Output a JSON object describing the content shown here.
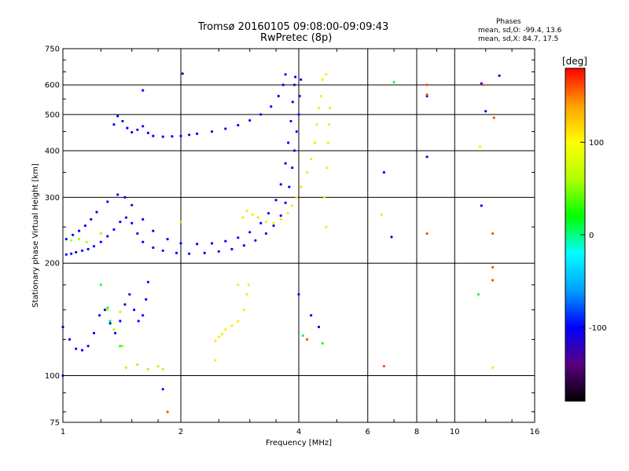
{
  "chart_data": {
    "type": "scatter",
    "title": "Tromsø 20160105 09:08:00-09:09:43",
    "subtitle": "RwPretec (8p)",
    "xlabel": "Frequency [MHz]",
    "ylabel": "Stationary phase Virtual Height [km]",
    "x_scale": "log",
    "y_scale": "log",
    "xlim": [
      1,
      16
    ],
    "ylim": [
      75,
      750
    ],
    "x_ticks": [
      1,
      2,
      4,
      6,
      8,
      10,
      16
    ],
    "x_tick_labels": [
      "1",
      "2",
      "4",
      "6",
      "8",
      "10",
      "16"
    ],
    "y_ticks": [
      75,
      100,
      200,
      300,
      400,
      500,
      600,
      750
    ],
    "y_tick_labels": [
      "75",
      "100",
      "200",
      "300",
      "400",
      "500",
      "600",
      "750"
    ],
    "grid": true,
    "info_lines": [
      "Phases",
      "mean, sd,O:  -99.4, 13.6",
      "mean, sd,X:  84.7, 17.5"
    ],
    "colorbar": {
      "label": "[deg]",
      "range": [
        -180,
        180
      ],
      "ticks": [
        100,
        0,
        -100
      ],
      "tick_labels": [
        "100",
        "0",
        "-100"
      ],
      "colors": [
        "#000000",
        "#5a0080",
        "#0000ff",
        "#00a0ff",
        "#00ffff",
        "#00ff00",
        "#b0ff00",
        "#ffff00",
        "#ffa000",
        "#ff0000"
      ]
    },
    "series": [
      {
        "phase": -100,
        "points": [
          [
            1.02,
            211
          ],
          [
            1.05,
            212
          ],
          [
            1.08,
            214
          ],
          [
            1.12,
            216
          ],
          [
            1.16,
            218
          ],
          [
            1.2,
            222
          ],
          [
            1.25,
            228
          ],
          [
            1.3,
            236
          ],
          [
            1.35,
            246
          ],
          [
            1.4,
            258
          ],
          [
            1.45,
            265
          ],
          [
            1.5,
            256
          ],
          [
            1.55,
            240
          ],
          [
            1.6,
            228
          ],
          [
            1.7,
            220
          ],
          [
            1.8,
            216
          ],
          [
            1.95,
            213
          ],
          [
            2.1,
            212
          ],
          [
            2.3,
            213
          ],
          [
            2.5,
            215
          ],
          [
            2.7,
            218
          ],
          [
            2.9,
            223
          ],
          [
            3.1,
            230
          ],
          [
            3.3,
            240
          ],
          [
            3.45,
            252
          ],
          [
            3.6,
            268
          ],
          [
            3.7,
            290
          ],
          [
            3.78,
            320
          ],
          [
            3.85,
            360
          ],
          [
            3.9,
            400
          ],
          [
            3.95,
            450
          ],
          [
            4.0,
            500
          ],
          [
            4.02,
            560
          ],
          [
            4.05,
            620
          ]
        ]
      },
      {
        "phase": -100,
        "points": [
          [
            1.02,
            232
          ],
          [
            1.06,
            238
          ],
          [
            1.1,
            244
          ],
          [
            1.14,
            252
          ],
          [
            1.18,
            262
          ],
          [
            1.22,
            274
          ],
          [
            1.3,
            292
          ],
          [
            1.38,
            305
          ],
          [
            1.44,
            300
          ],
          [
            1.5,
            286
          ],
          [
            1.6,
            262
          ],
          [
            1.7,
            244
          ],
          [
            1.85,
            232
          ],
          [
            2.0,
            226
          ],
          [
            2.2,
            225
          ],
          [
            2.4,
            226
          ],
          [
            2.6,
            229
          ],
          [
            2.8,
            234
          ],
          [
            3.0,
            242
          ],
          [
            3.2,
            256
          ],
          [
            3.35,
            272
          ],
          [
            3.5,
            295
          ],
          [
            3.6,
            325
          ],
          [
            3.7,
            370
          ],
          [
            3.76,
            420
          ],
          [
            3.82,
            480
          ],
          [
            3.86,
            540
          ],
          [
            3.9,
            600
          ],
          [
            3.92,
            630
          ]
        ]
      },
      {
        "phase": -100,
        "points": [
          [
            1.35,
            470
          ],
          [
            1.38,
            495
          ],
          [
            1.42,
            480
          ],
          [
            1.46,
            460
          ],
          [
            1.5,
            448
          ],
          [
            1.55,
            455
          ],
          [
            1.6,
            465
          ],
          [
            1.65,
            446
          ],
          [
            1.7,
            438
          ],
          [
            1.8,
            436
          ],
          [
            1.9,
            437
          ],
          [
            2.0,
            438
          ],
          [
            2.1,
            441
          ],
          [
            2.2,
            444
          ],
          [
            2.4,
            450
          ],
          [
            2.6,
            458
          ],
          [
            2.8,
            468
          ],
          [
            3.0,
            482
          ],
          [
            3.2,
            500
          ],
          [
            3.4,
            525
          ],
          [
            3.55,
            560
          ],
          [
            3.65,
            600
          ],
          [
            3.7,
            640
          ]
        ]
      },
      {
        "phase": -100,
        "points": [
          [
            1.0,
            135
          ],
          [
            1.04,
            125
          ],
          [
            1.08,
            118
          ],
          [
            1.12,
            117
          ],
          [
            1.16,
            120
          ],
          [
            1.2,
            130
          ],
          [
            1.24,
            145
          ],
          [
            1.28,
            150
          ],
          [
            1.32,
            138
          ],
          [
            1.36,
            130
          ],
          [
            1.4,
            140
          ],
          [
            1.44,
            155
          ],
          [
            1.48,
            165
          ],
          [
            1.52,
            150
          ],
          [
            1.56,
            140
          ],
          [
            1.6,
            145
          ],
          [
            1.63,
            160
          ],
          [
            1.65,
            178
          ]
        ]
      },
      {
        "phase": -100,
        "points": [
          [
            1.0,
            100
          ],
          [
            1.6,
            580
          ],
          [
            1.8,
            92
          ],
          [
            2.02,
            643
          ],
          [
            4.0,
            165
          ],
          [
            4.3,
            145
          ],
          [
            4.5,
            135
          ],
          [
            6.6,
            350
          ],
          [
            6.9,
            235
          ],
          [
            8.5,
            385
          ],
          [
            8.5,
            560
          ],
          [
            11.7,
            605
          ],
          [
            11.7,
            285
          ],
          [
            12.0,
            510
          ],
          [
            13.0,
            635
          ]
        ]
      },
      {
        "phase": 10,
        "points": [
          [
            1.25,
            175
          ],
          [
            1.3,
            152
          ],
          [
            1.32,
            140
          ],
          [
            1.4,
            120
          ],
          [
            4.1,
            128
          ],
          [
            4.6,
            122
          ],
          [
            7.0,
            610
          ],
          [
            11.5,
            165
          ]
        ]
      },
      {
        "phase": 60,
        "points": [
          [
            1.05,
            230
          ],
          [
            1.1,
            232
          ],
          [
            1.15,
            228
          ],
          [
            1.25,
            240
          ],
          [
            1.3,
            150
          ],
          [
            1.35,
            133
          ],
          [
            1.4,
            148
          ],
          [
            1.42,
            120
          ],
          [
            1.45,
            105
          ],
          [
            1.55,
            107
          ],
          [
            1.65,
            104
          ],
          [
            1.75,
            106
          ],
          [
            1.8,
            104
          ],
          [
            2.0,
            258
          ]
        ]
      },
      {
        "phase": 110,
        "points": [
          [
            2.45,
            124
          ],
          [
            2.5,
            127
          ],
          [
            2.55,
            129
          ],
          [
            2.6,
            133
          ],
          [
            2.7,
            136
          ],
          [
            2.8,
            140
          ],
          [
            2.9,
            150
          ],
          [
            2.95,
            165
          ],
          [
            2.98,
            175
          ],
          [
            2.45,
            110
          ],
          [
            2.8,
            175
          ],
          [
            2.88,
            265
          ],
          [
            2.95,
            276
          ],
          [
            3.05,
            270
          ],
          [
            3.15,
            265
          ],
          [
            3.3,
            258
          ],
          [
            3.45,
            256
          ],
          [
            3.6,
            262
          ],
          [
            3.75,
            272
          ],
          [
            3.85,
            285
          ],
          [
            3.95,
            300
          ],
          [
            4.05,
            320
          ],
          [
            4.2,
            350
          ],
          [
            4.3,
            380
          ],
          [
            4.4,
            420
          ],
          [
            4.45,
            470
          ],
          [
            4.5,
            520
          ],
          [
            4.55,
            560
          ],
          [
            4.6,
            620
          ],
          [
            4.7,
            640
          ],
          [
            4.72,
            360
          ],
          [
            4.75,
            420
          ],
          [
            4.78,
            470
          ],
          [
            4.8,
            520
          ],
          [
            4.65,
            300
          ],
          [
            4.7,
            250
          ],
          [
            6.5,
            270
          ],
          [
            11.6,
            410
          ],
          [
            12.5,
            105
          ]
        ]
      },
      {
        "phase": 160,
        "points": [
          [
            1.85,
            80
          ],
          [
            4.2,
            125
          ],
          [
            6.6,
            106
          ],
          [
            8.5,
            240
          ],
          [
            8.5,
            565
          ],
          [
            11.8,
            600
          ],
          [
            12.5,
            180
          ],
          [
            12.5,
            240
          ],
          [
            12.6,
            490
          ],
          [
            12.5,
            195
          ],
          [
            8.5,
            600
          ]
        ]
      }
    ]
  }
}
